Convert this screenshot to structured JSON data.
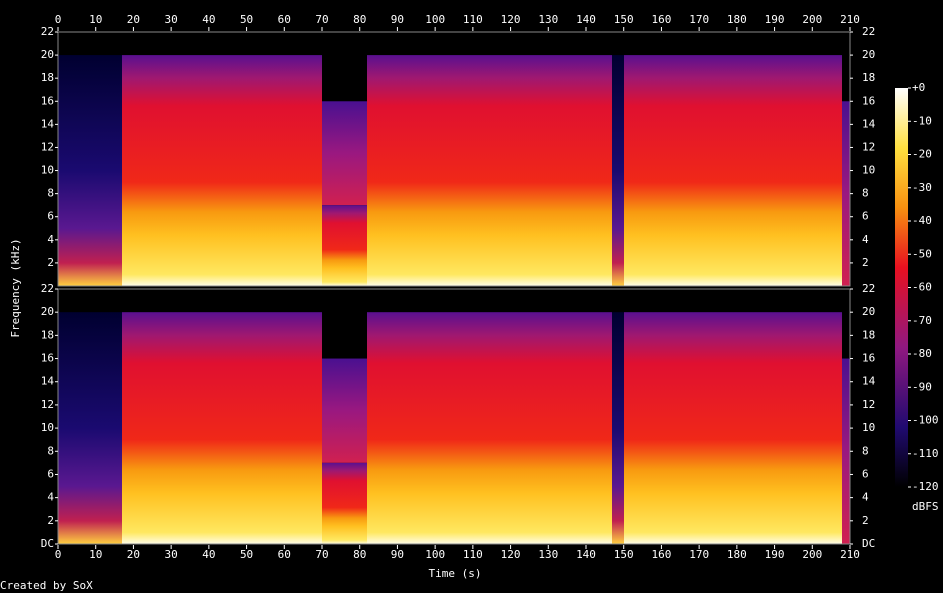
{
  "chart_data": {
    "type": "spectrogram",
    "x_label": "Time (s)",
    "y_label": "Frequency (kHz)",
    "xlim": [
      0,
      210
    ],
    "xticks": [
      0,
      10,
      20,
      30,
      40,
      50,
      60,
      70,
      80,
      90,
      100,
      110,
      120,
      130,
      140,
      150,
      160,
      170,
      180,
      190,
      200,
      210
    ],
    "channels": [
      {
        "ylim": [
          0,
          22
        ],
        "yticks": [
          2,
          4,
          6,
          8,
          10,
          12,
          14,
          16,
          18,
          20,
          22
        ]
      },
      {
        "ylim": [
          0,
          22
        ],
        "yticks": [
          {
            "value": 0,
            "label": "DC"
          },
          2,
          4,
          6,
          8,
          10,
          12,
          14,
          16,
          18,
          20,
          22
        ]
      }
    ],
    "colorbar": {
      "label": "dBFS",
      "lim": [
        -120,
        0
      ],
      "ticks": [
        {
          "value": 0,
          "label": "+0"
        },
        -10,
        -20,
        -30,
        -40,
        -50,
        -60,
        -70,
        -80,
        -90,
        -100,
        -110,
        -120
      ]
    },
    "credit": "Created by SoX"
  }
}
